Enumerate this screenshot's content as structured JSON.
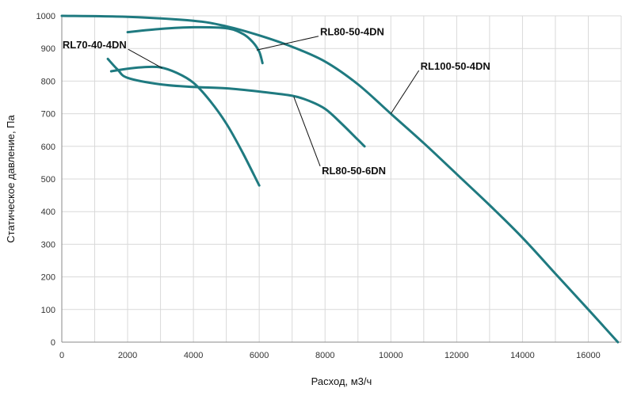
{
  "chart_data": {
    "type": "line",
    "title": "",
    "xlabel": "Расход, м3/ч",
    "ylabel": "Статическое давление, Па",
    "xlim": [
      0,
      17000
    ],
    "ylim": [
      0,
      1000
    ],
    "xticks": [
      0,
      2000,
      4000,
      6000,
      8000,
      10000,
      12000,
      14000,
      16000
    ],
    "yticks": [
      0,
      100,
      200,
      300,
      400,
      500,
      600,
      700,
      800,
      900,
      1000
    ],
    "grid": true,
    "line_color": "#1f7a80",
    "series": [
      {
        "name": "RL100-50-4DN",
        "points": [
          [
            0,
            1000
          ],
          [
            2000,
            997
          ],
          [
            4000,
            985
          ],
          [
            5000,
            968
          ],
          [
            6000,
            940
          ],
          [
            7000,
            905
          ],
          [
            8000,
            860
          ],
          [
            9000,
            790
          ],
          [
            10000,
            700
          ],
          [
            11000,
            610
          ],
          [
            12000,
            515
          ],
          [
            13000,
            420
          ],
          [
            14000,
            320
          ],
          [
            15000,
            210
          ],
          [
            16000,
            100
          ],
          [
            16900,
            0
          ]
        ]
      },
      {
        "name": "RL80-50-4DN",
        "points": [
          [
            2000,
            950
          ],
          [
            3000,
            960
          ],
          [
            4000,
            965
          ],
          [
            5000,
            962
          ],
          [
            5500,
            945
          ],
          [
            5800,
            920
          ],
          [
            6000,
            890
          ],
          [
            6100,
            855
          ]
        ]
      },
      {
        "name": "RL70-40-4DN",
        "points": [
          [
            1500,
            830
          ],
          [
            2000,
            838
          ],
          [
            2500,
            843
          ],
          [
            3000,
            842
          ],
          [
            3500,
            825
          ],
          [
            4000,
            795
          ],
          [
            4500,
            740
          ],
          [
            5000,
            670
          ],
          [
            5500,
            580
          ],
          [
            6000,
            480
          ]
        ]
      },
      {
        "name": "RL80-50-6DN",
        "points": [
          [
            1400,
            868
          ],
          [
            1700,
            835
          ],
          [
            2000,
            810
          ],
          [
            3000,
            790
          ],
          [
            4000,
            782
          ],
          [
            5000,
            778
          ],
          [
            6000,
            768
          ],
          [
            7000,
            755
          ],
          [
            7500,
            740
          ],
          [
            8000,
            715
          ],
          [
            8500,
            670
          ],
          [
            9000,
            620
          ],
          [
            9200,
            600
          ]
        ]
      }
    ],
    "labels": [
      {
        "series": "RL80-50-4DN",
        "text": "RL80-50-4DN",
        "x": 7850,
        "y": 940,
        "anchor_x": 5920,
        "anchor_y": 895
      },
      {
        "series": "RL100-50-4DN",
        "text": "RL100-50-4DN",
        "x": 10900,
        "y": 835,
        "anchor_x": 10000,
        "anchor_y": 700
      },
      {
        "series": "RL70-40-4DN",
        "text": "RL70-40-4DN",
        "x": 20,
        "y": 900,
        "anchor_x": 3050,
        "anchor_y": 840
      },
      {
        "series": "RL80-50-6DN",
        "text": "RL80-50-6DN",
        "x": 7900,
        "y": 515,
        "anchor_x": 7050,
        "anchor_y": 752
      }
    ]
  }
}
